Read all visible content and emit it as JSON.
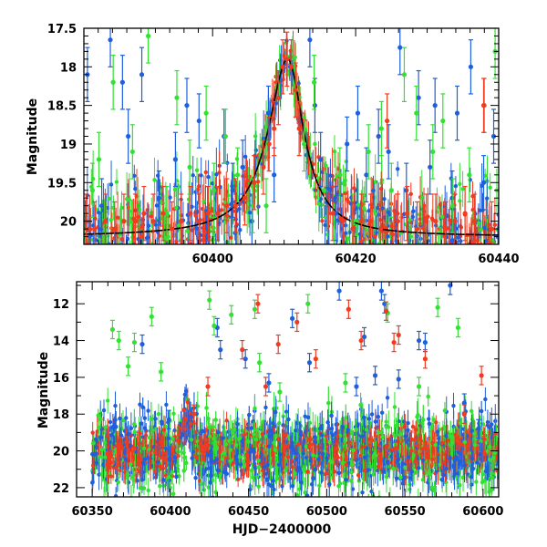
{
  "chart_data": [
    {
      "type": "scatter",
      "panel": "top",
      "xlabel": "",
      "ylabel": "Magnitude",
      "xlim": [
        60382,
        60440
      ],
      "ylim": [
        20.3,
        17.5
      ],
      "y_inverted": true,
      "x_ticks": [
        "60400",
        "60420",
        "60440"
      ],
      "y_ticks": [
        "17.5",
        "18",
        "18.5",
        "19",
        "19.5",
        "20"
      ],
      "error_bars": true,
      "model_curve": {
        "style": "solid black line",
        "description": "baseline ~20.2, rises to a peak near 60410.5 at ~17.9, returns to baseline",
        "baseline": 20.2,
        "peak_x": 60410.5,
        "peak_y": 17.9
      },
      "series": [
        {
          "color": "#1f5fdc",
          "points": [
            [
              60382.5,
              18.1
            ],
            [
              60384.5,
              19.8
            ],
            [
              60385.7,
              17.65
            ],
            [
              60387.4,
              18.2
            ],
            [
              60388.2,
              18.9
            ],
            [
              60390.1,
              18.1
            ],
            [
              60392.5,
              19.7
            ],
            [
              60394.8,
              19.2
            ],
            [
              60396.4,
              18.5
            ],
            [
              60398.1,
              18.7
            ],
            [
              60399.3,
              19.9
            ],
            [
              60401.6,
              18.9
            ],
            [
              60402.8,
              19.6
            ],
            [
              60404.2,
              19.3
            ],
            [
              60405.5,
              20.0
            ],
            [
              60407.8,
              18.6
            ],
            [
              60408.6,
              19.4
            ],
            [
              60413.6,
              17.65
            ],
            [
              60414.3,
              18.5
            ],
            [
              60415.1,
              19.2
            ],
            [
              60417.2,
              19.9
            ],
            [
              60418.8,
              19.0
            ],
            [
              60420.3,
              18.6
            ],
            [
              60421.5,
              19.4
            ],
            [
              60423.2,
              18.9
            ],
            [
              60424.6,
              19.1
            ],
            [
              60426.2,
              17.75
            ],
            [
              60427.1,
              19.6
            ],
            [
              60428.8,
              18.4
            ],
            [
              60430.4,
              19.3
            ],
            [
              60431.1,
              18.5
            ],
            [
              60433.5,
              19.7
            ],
            [
              60434.2,
              18.6
            ],
            [
              60436.1,
              18.0
            ],
            [
              60437.9,
              19.5
            ],
            [
              60439.3,
              18.9
            ]
          ]
        },
        {
          "color": "#33e033",
          "points": [
            [
              60383.2,
              19.6
            ],
            [
              60384.1,
              19.2
            ],
            [
              60386.1,
              18.2
            ],
            [
              60388.8,
              19.1
            ],
            [
              60391.0,
              17.6
            ],
            [
              60393.6,
              19.9
            ],
            [
              60395.0,
              18.4
            ],
            [
              60396.8,
              19.3
            ],
            [
              60399.1,
              18.6
            ],
            [
              60400.2,
              19.6
            ],
            [
              60401.8,
              18.9
            ],
            [
              60403.5,
              19.4
            ],
            [
              60405.6,
              19.8
            ],
            [
              60407.5,
              19.8
            ],
            [
              60412.8,
              19.0
            ],
            [
              60414.2,
              18.2
            ],
            [
              60415.6,
              19.6
            ],
            [
              60417.8,
              19.4
            ],
            [
              60419.6,
              20.0
            ],
            [
              60421.8,
              19.1
            ],
            [
              60423.6,
              18.8
            ],
            [
              60425.0,
              19.6
            ],
            [
              60426.8,
              18.1
            ],
            [
              60428.5,
              18.6
            ],
            [
              60430.8,
              19.1
            ],
            [
              60432.2,
              18.7
            ],
            [
              60433.6,
              19.8
            ],
            [
              60435.9,
              19.4
            ],
            [
              60438.0,
              18.5
            ],
            [
              60439.5,
              17.8
            ]
          ]
        },
        {
          "color": "#f03b20",
          "points": [
            [
              60382.3,
              20.0
            ],
            [
              60383.5,
              20.1
            ],
            [
              60385.0,
              20.0
            ],
            [
              60386.3,
              20.1
            ],
            [
              60387.6,
              20.0
            ],
            [
              60389.2,
              20.0
            ],
            [
              60390.4,
              19.9
            ],
            [
              60391.7,
              20.0
            ],
            [
              60393.1,
              19.9
            ],
            [
              60394.3,
              20.1
            ],
            [
              60395.6,
              20.0
            ],
            [
              60396.9,
              19.9
            ],
            [
              60398.1,
              20.0
            ],
            [
              60399.4,
              19.9
            ],
            [
              60400.7,
              19.9
            ],
            [
              60402.0,
              19.8
            ],
            [
              60403.2,
              19.8
            ],
            [
              60404.5,
              19.7
            ],
            [
              60405.8,
              19.5
            ],
            [
              60407.1,
              19.3
            ],
            [
              60407.9,
              19.0
            ],
            [
              60408.6,
              18.8
            ],
            [
              60409.2,
              18.4
            ],
            [
              60409.8,
              18.0
            ],
            [
              60410.4,
              17.9
            ],
            [
              60411.0,
              18.0
            ],
            [
              60411.6,
              18.3
            ],
            [
              60412.1,
              18.8
            ],
            [
              60416.8,
              19.9
            ],
            [
              60418.2,
              20.0
            ],
            [
              60419.6,
              20.1
            ],
            [
              60420.8,
              20.0
            ],
            [
              60422.1,
              20.0
            ],
            [
              60423.5,
              20.1
            ],
            [
              60424.4,
              18.7
            ],
            [
              60425.9,
              20.0
            ],
            [
              60427.2,
              19.9
            ],
            [
              60428.6,
              20.1
            ],
            [
              60429.9,
              20.0
            ],
            [
              60431.2,
              20.0
            ],
            [
              60432.6,
              20.1
            ],
            [
              60433.9,
              20.0
            ],
            [
              60435.3,
              19.9
            ],
            [
              60436.6,
              20.0
            ],
            [
              60437.9,
              18.5
            ],
            [
              60439.0,
              20.1
            ]
          ]
        }
      ]
    },
    {
      "type": "scatter",
      "panel": "bottom",
      "xlabel": "HJD−2400000",
      "ylabel": "Magnitude",
      "xlim": [
        60340,
        60610
      ],
      "ylim": [
        22.5,
        10.8
      ],
      "y_inverted": true,
      "x_ticks": [
        "60350",
        "60400",
        "60450",
        "60500",
        "60550",
        "60600"
      ],
      "y_ticks": [
        "12",
        "14",
        "16",
        "18",
        "20",
        "22"
      ],
      "error_bars": true,
      "series": [
        {
          "color": "#1f5fdc",
          "points": [
            [
              60382,
              14.2
            ],
            [
              60399,
              18.3
            ],
            [
              60430,
              13.3
            ],
            [
              60432,
              14.5
            ],
            [
              60448,
              15.0
            ],
            [
              60463,
              16.3
            ],
            [
              60478,
              12.8
            ],
            [
              60489,
              15.2
            ],
            [
              60508,
              11.3
            ],
            [
              60519,
              16.5
            ],
            [
              60524,
              13.8
            ],
            [
              60531,
              15.9
            ],
            [
              60535,
              11.3
            ],
            [
              60537,
              12.0
            ],
            [
              60546,
              16.1
            ],
            [
              60559,
              14.0
            ],
            [
              60563,
              14.1
            ],
            [
              60579,
              11.0
            ],
            [
              60588,
              17.4
            ],
            [
              60597,
              18.8
            ]
          ]
        },
        {
          "color": "#33e033",
          "points": [
            [
              60363,
              13.4
            ],
            [
              60367,
              14.0
            ],
            [
              60373,
              15.4
            ],
            [
              60377,
              14.1
            ],
            [
              60388,
              12.7
            ],
            [
              60394,
              15.7
            ],
            [
              60425,
              11.8
            ],
            [
              60428,
              13.2
            ],
            [
              60439,
              12.6
            ],
            [
              60454,
              12.3
            ],
            [
              60457,
              15.2
            ],
            [
              60470,
              16.8
            ],
            [
              60488,
              12.0
            ],
            [
              60512,
              16.3
            ],
            [
              60539,
              12.5
            ],
            [
              60559,
              16.5
            ],
            [
              60571,
              12.2
            ],
            [
              60584,
              13.3
            ]
          ]
        },
        {
          "color": "#f03b20",
          "points": [
            [
              60415,
              18.0
            ],
            [
              60424,
              16.5
            ],
            [
              60446,
              14.5
            ],
            [
              60456,
              12.0
            ],
            [
              60461,
              16.5
            ],
            [
              60469,
              14.2
            ],
            [
              60481,
              13.0
            ],
            [
              60493,
              15.0
            ],
            [
              60514,
              12.3
            ],
            [
              60522,
              14.0
            ],
            [
              60538,
              12.4
            ],
            [
              60543,
              14.1
            ],
            [
              60546,
              13.7
            ],
            [
              60563,
              15.0
            ],
            [
              60588,
              18.0
            ],
            [
              60599,
              15.9
            ]
          ]
        }
      ]
    }
  ]
}
